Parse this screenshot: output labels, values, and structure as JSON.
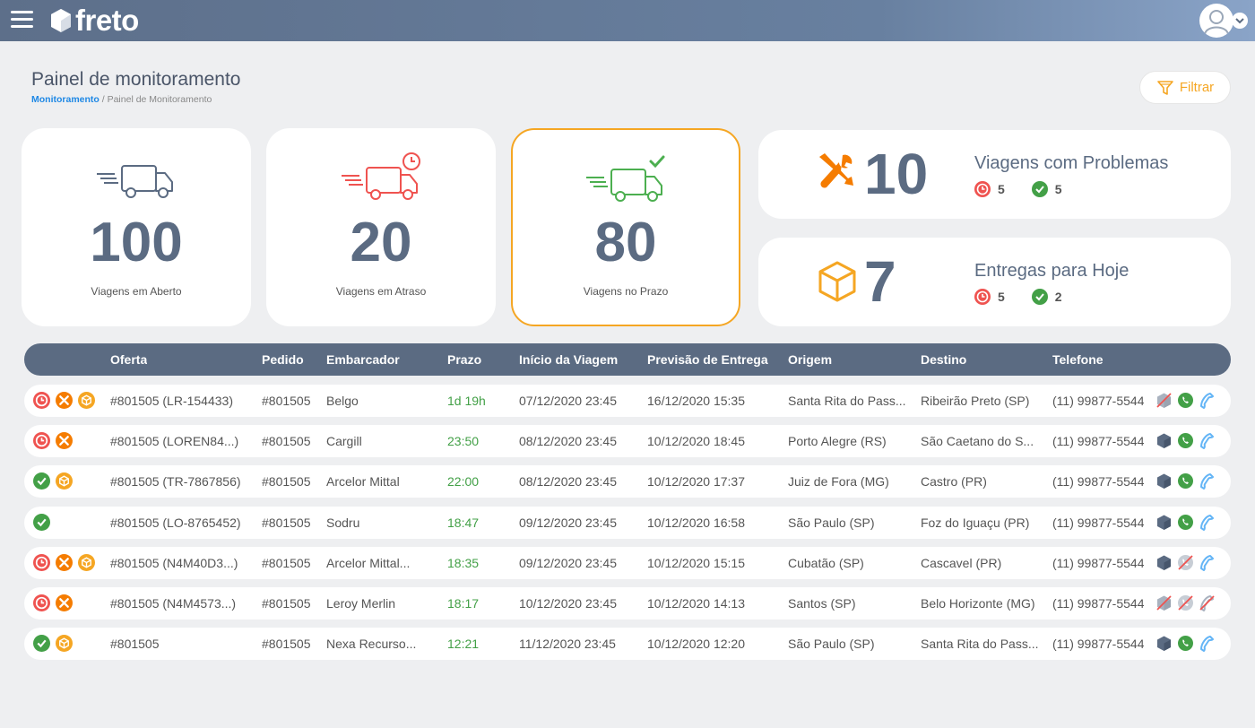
{
  "header": {
    "app_name": "freto",
    "menu_icon": "hamburger-menu-icon",
    "avatar_icon": "user-avatar-icon"
  },
  "page": {
    "title": "Painel de monitoramento",
    "breadcrumb_link": "Monitoramento",
    "breadcrumb_separator": " / ",
    "breadcrumb_current": "Painel de Monitoramento",
    "filter_label": "Filtrar"
  },
  "colors": {
    "accent_orange": "#f5a623",
    "late_red": "#ef5350",
    "ok_green": "#43a047",
    "problem_orange": "#f57c00",
    "header_slate": "#5b6b82"
  },
  "summary": {
    "open": {
      "value": "100",
      "label": "Viagens em Aberto"
    },
    "late": {
      "value": "20",
      "label": "Viagens em Atraso"
    },
    "on_time": {
      "value": "80",
      "label": "Viagens no Prazo"
    },
    "problems": {
      "value": "10",
      "title": "Viagens com Problemas",
      "late_count": "5",
      "ok_count": "5"
    },
    "today": {
      "value": "7",
      "title": "Entregas para Hoje",
      "late_count": "5",
      "ok_count": "2"
    }
  },
  "table": {
    "columns": {
      "oferta": "Oferta",
      "pedido": "Pedido",
      "embarcador": "Embarcador",
      "prazo": "Prazo",
      "inicio": "Início da Viagem",
      "previsao": "Previsão de Entrega",
      "origem": "Origem",
      "destino": "Destino",
      "telefone": "Telefone"
    },
    "rows": [
      {
        "status": [
          "late",
          "problem",
          "package"
        ],
        "oferta": "#801505 (LR-154433)",
        "pedido": "#801505",
        "embarcador": "Belgo",
        "prazo": "1d 19h",
        "inicio": "07/12/2020 23:45",
        "previsao": "16/12/2020 15:35",
        "origem": "Santa Rita do Pass...",
        "destino": "Ribeirão Preto (SP)",
        "telefone": "(11) 99877-5544",
        "actions": {
          "app": false,
          "whatsapp": true,
          "phone": true
        }
      },
      {
        "status": [
          "late",
          "problem"
        ],
        "oferta": "#801505 (LOREN84...)",
        "pedido": "#801505",
        "embarcador": "Cargill",
        "prazo": "23:50",
        "inicio": "08/12/2020 23:45",
        "previsao": "10/12/2020 18:45",
        "origem": "Porto Alegre (RS)",
        "destino": "São Caetano do S...",
        "telefone": "(11) 99877-5544",
        "actions": {
          "app": true,
          "whatsapp": true,
          "phone": true
        }
      },
      {
        "status": [
          "ok",
          "package"
        ],
        "oferta": "#801505 (TR-7867856)",
        "pedido": "#801505",
        "embarcador": "Arcelor Mittal",
        "prazo": "22:00",
        "inicio": "08/12/2020 23:45",
        "previsao": "10/12/2020 17:37",
        "origem": "Juiz de Fora (MG)",
        "destino": "Castro (PR)",
        "telefone": "(11) 99877-5544",
        "actions": {
          "app": true,
          "whatsapp": true,
          "phone": true
        }
      },
      {
        "status": [
          "ok"
        ],
        "oferta": "#801505 (LO-8765452)",
        "pedido": "#801505",
        "embarcador": "Sodru",
        "prazo": "18:47",
        "inicio": "09/12/2020 23:45",
        "previsao": "10/12/2020 16:58",
        "origem": "São Paulo (SP)",
        "destino": "Foz do Iguaçu (PR)",
        "telefone": "(11) 99877-5544",
        "actions": {
          "app": true,
          "whatsapp": true,
          "phone": true
        }
      },
      {
        "status": [
          "late",
          "problem",
          "package"
        ],
        "oferta": "#801505 (N4M40D3...)",
        "pedido": "#801505",
        "embarcador": "Arcelor Mittal...",
        "prazo": "18:35",
        "inicio": "09/12/2020 23:45",
        "previsao": "10/12/2020 15:15",
        "origem": "Cubatão (SP)",
        "destino": "Cascavel (PR)",
        "telefone": "(11) 99877-5544",
        "actions": {
          "app": true,
          "whatsapp": false,
          "phone": true
        }
      },
      {
        "status": [
          "late",
          "problem"
        ],
        "oferta": "#801505 (N4M4573...)",
        "pedido": "#801505",
        "embarcador": "Leroy Merlin",
        "prazo": "18:17",
        "inicio": "10/12/2020 23:45",
        "previsao": "10/12/2020 14:13",
        "origem": "Santos (SP)",
        "destino": "Belo Horizonte (MG)",
        "telefone": "(11) 99877-5544",
        "actions": {
          "app": false,
          "whatsapp": false,
          "phone": false
        }
      },
      {
        "status": [
          "ok",
          "package"
        ],
        "oferta": "#801505",
        "pedido": "#801505",
        "embarcador": "Nexa Recurso...",
        "prazo": "12:21",
        "inicio": "11/12/2020 23:45",
        "previsao": "10/12/2020 12:20",
        "origem": "São Paulo (SP)",
        "destino": "Santa Rita do Pass...",
        "telefone": "(11) 99877-5544",
        "actions": {
          "app": true,
          "whatsapp": true,
          "phone": true
        }
      }
    ]
  }
}
